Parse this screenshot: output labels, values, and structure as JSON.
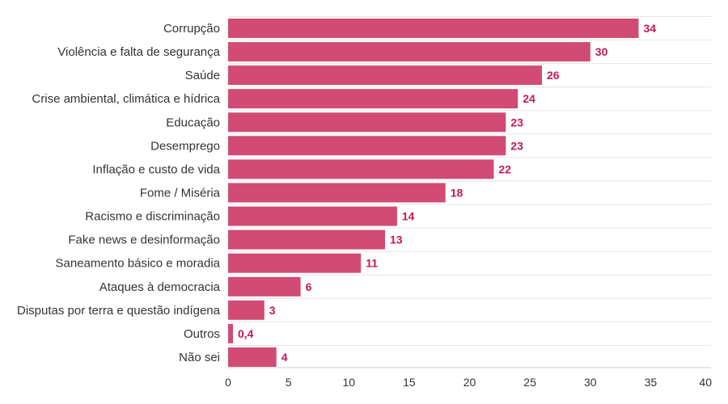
{
  "chart_data": {
    "type": "bar",
    "orientation": "horizontal",
    "categories": [
      "Corrupção",
      "Violência e falta de segurança",
      "Saúde",
      "Crise ambiental, climática e hídrica",
      "Educação",
      "Desemprego",
      "Inflação e custo de vida",
      "Fome / Miséria",
      "Racismo e discriminação",
      "Fake news e desinformação",
      "Saneamento básico e moradia",
      "Ataques à democracia",
      "Disputas por terra e questão indígena",
      "Outros",
      "Não sei"
    ],
    "values": [
      34,
      30,
      26,
      24,
      23,
      23,
      22,
      18,
      14,
      13,
      11,
      6,
      3,
      0.4,
      4
    ],
    "value_labels": [
      "34",
      "30",
      "26",
      "24",
      "23",
      "23",
      "22",
      "18",
      "14",
      "13",
      "11",
      "6",
      "3",
      "0,4",
      "4"
    ],
    "xlim": [
      0,
      40
    ],
    "xticks": [
      0,
      5,
      10,
      15,
      20,
      25,
      30,
      35,
      40
    ],
    "grid": true,
    "colors": {
      "bar": "#d14b74",
      "value_label": "#c2185b"
    }
  }
}
